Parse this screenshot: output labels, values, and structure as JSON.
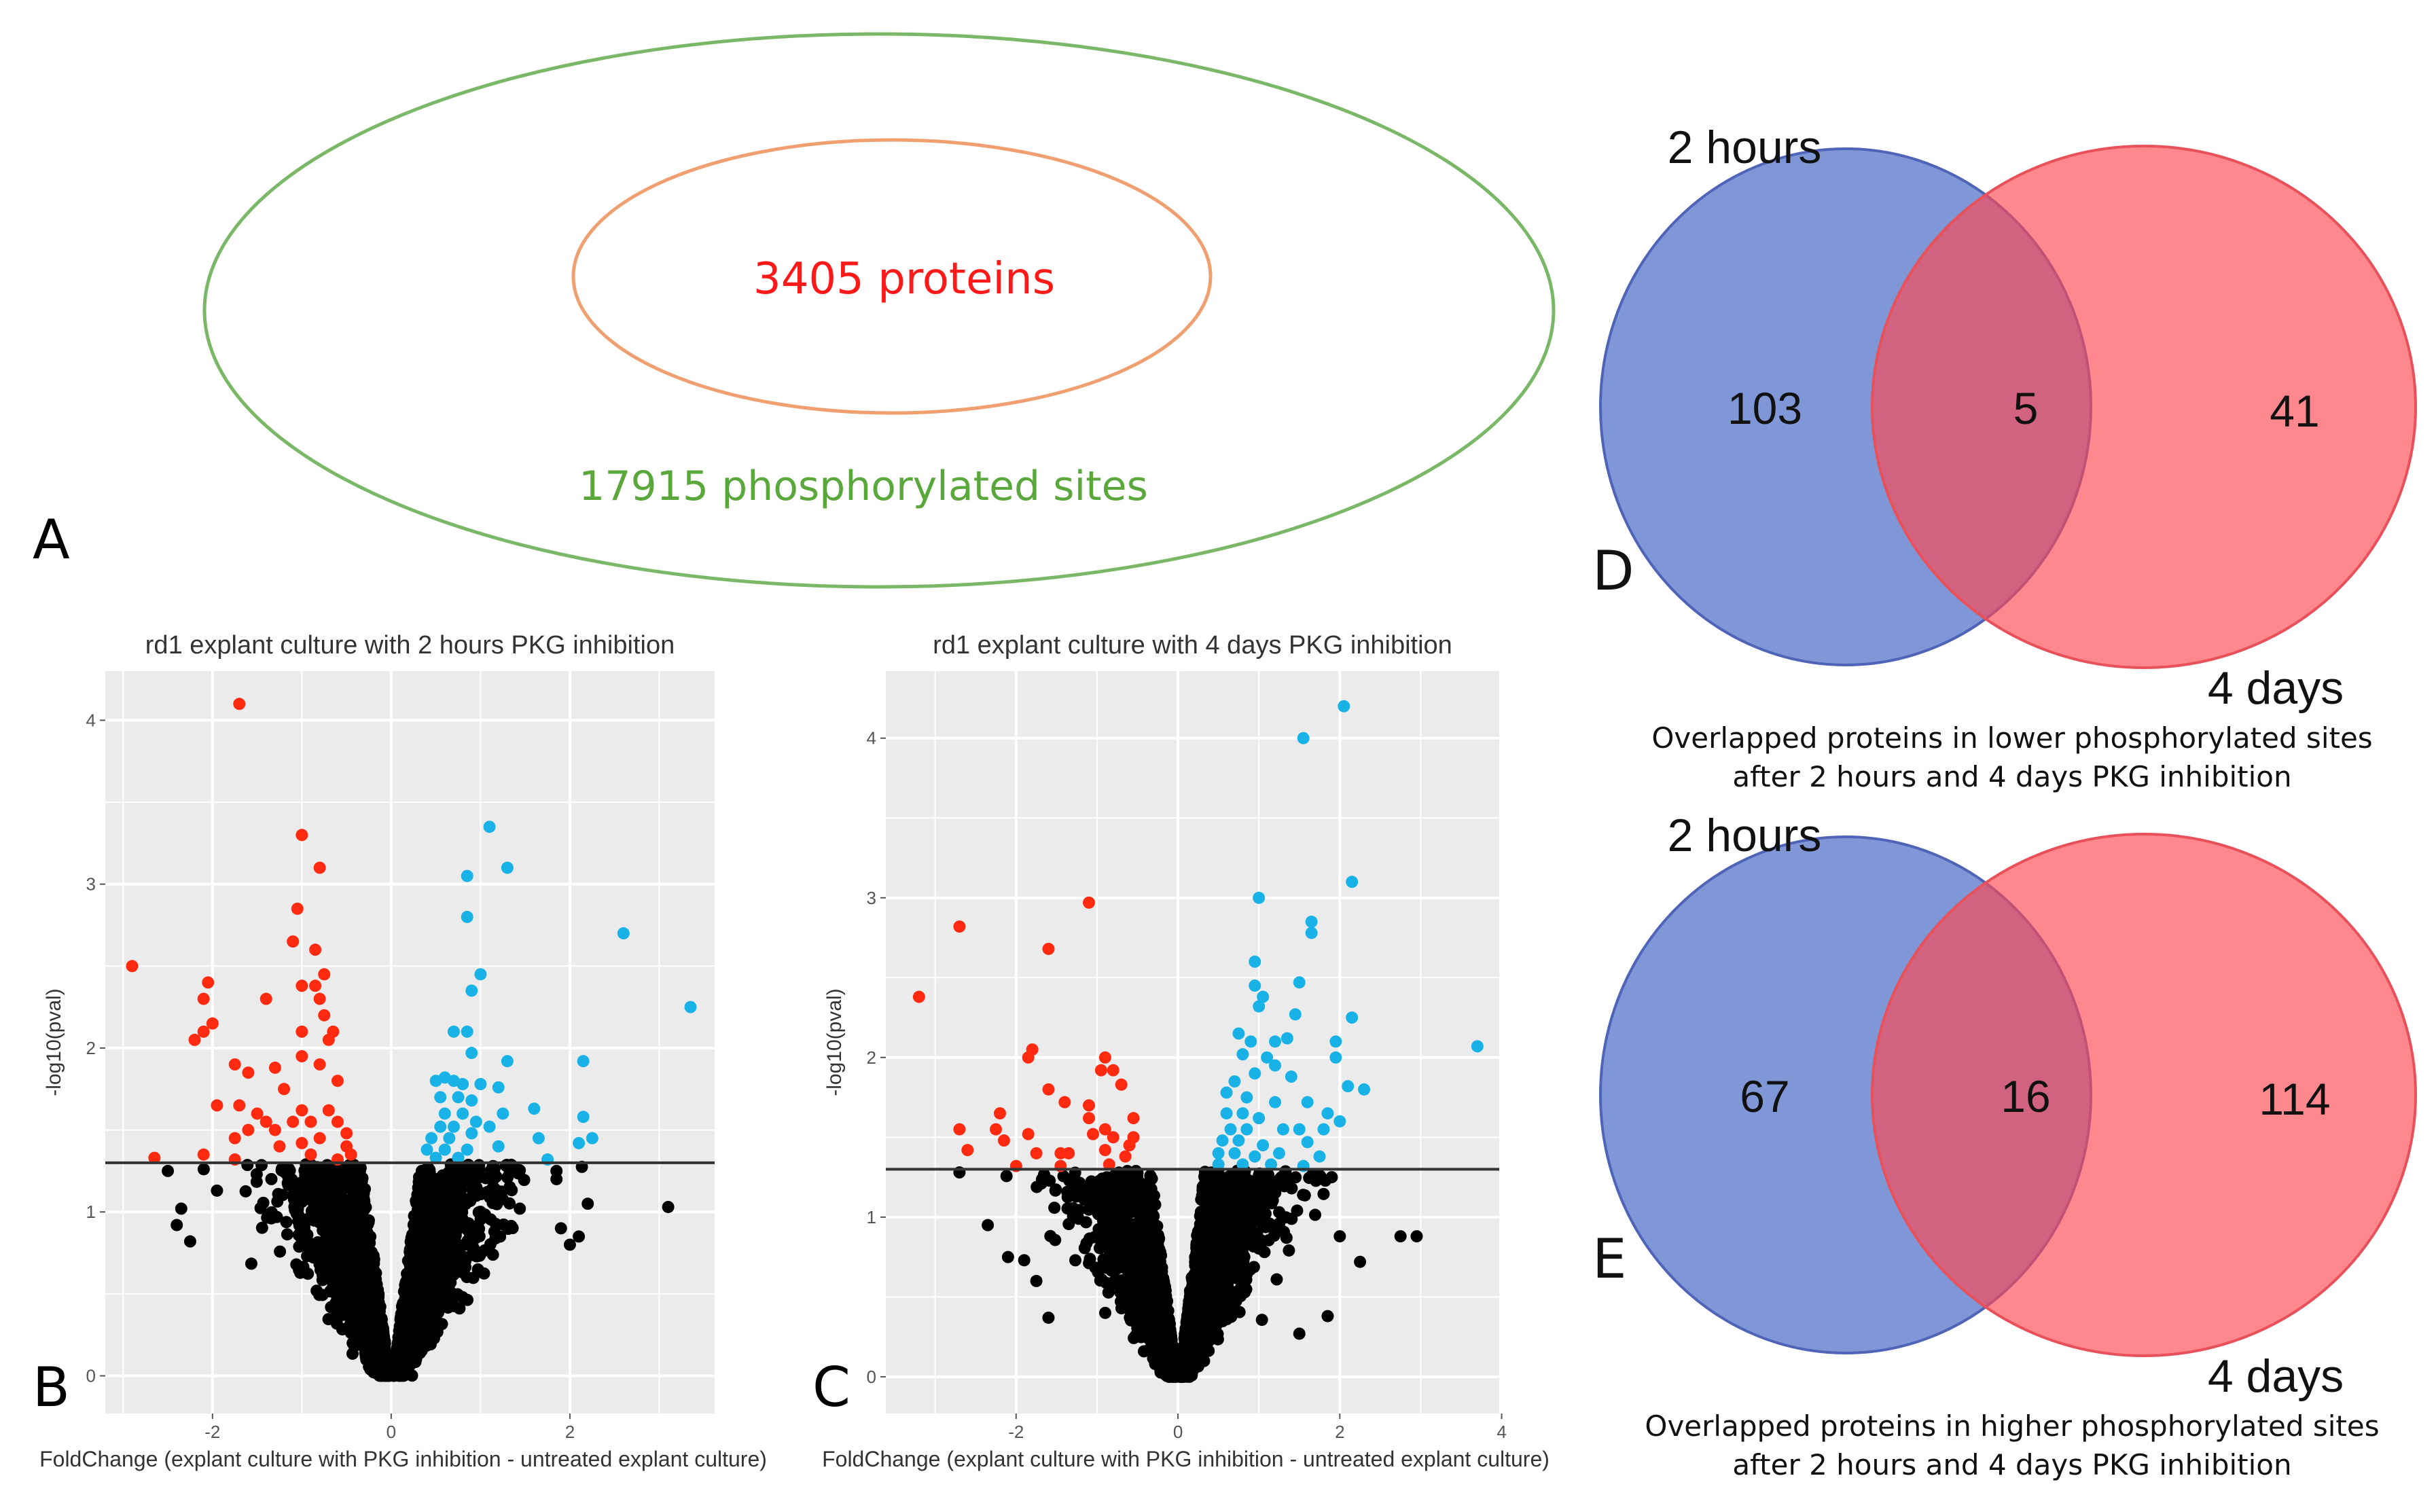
{
  "panel_a": {
    "label": "A",
    "inner_text": "3405 proteins",
    "outer_text": "17915 phosphorylated sites",
    "colors": {
      "inner": "#f0a070",
      "outer": "#7ab868",
      "inner_text": "#ff1a1a",
      "outer_text": "#5aa83c"
    }
  },
  "chart_data": [
    {
      "type": "scatter",
      "panel": "B",
      "title": "rd1 explant culture with 2 hours PKG inhibition",
      "xlabel": "FoldChange (explant culture with PKG inhibition - untreated explant culture)",
      "ylabel": "-log10(pval)",
      "xlim": [
        -3.2,
        3.62
      ],
      "ylim": [
        -0.23,
        4.3
      ],
      "xticks": [
        "-2",
        "0",
        "2"
      ],
      "xtick_values": [
        -2,
        0,
        2
      ],
      "yticks": [
        "0",
        "1",
        "2",
        "3",
        "4"
      ],
      "ytick_values": [
        0,
        1,
        2,
        3,
        4
      ],
      "threshold": 1.3,
      "grid": true,
      "colors": {
        "down": "#ff2a10",
        "up": "#19b2e6",
        "ns": "#000000"
      },
      "down": [
        [
          -1.7,
          4.1
        ],
        [
          -1.0,
          3.3
        ],
        [
          -0.8,
          3.1
        ],
        [
          -1.05,
          2.85
        ],
        [
          -1.1,
          2.65
        ],
        [
          -0.85,
          2.6
        ],
        [
          -2.9,
          2.5
        ],
        [
          -0.75,
          2.45
        ],
        [
          -2.05,
          2.4
        ],
        [
          -1.0,
          2.38
        ],
        [
          -0.85,
          2.38
        ],
        [
          -2.1,
          2.3
        ],
        [
          -1.4,
          2.3
        ],
        [
          -0.8,
          2.3
        ],
        [
          -0.75,
          2.2
        ],
        [
          -2.0,
          2.15
        ],
        [
          -2.1,
          2.1
        ],
        [
          -1.0,
          2.1
        ],
        [
          -0.65,
          2.1
        ],
        [
          -2.2,
          2.05
        ],
        [
          -0.7,
          2.05
        ],
        [
          -1.0,
          1.95
        ],
        [
          -1.75,
          1.9
        ],
        [
          -1.6,
          1.85
        ],
        [
          -1.3,
          1.88
        ],
        [
          -0.8,
          1.9
        ],
        [
          -0.6,
          1.8
        ],
        [
          -1.2,
          1.75
        ],
        [
          -1.95,
          1.65
        ],
        [
          -1.7,
          1.65
        ],
        [
          -1.5,
          1.6
        ],
        [
          -1.0,
          1.62
        ],
        [
          -0.7,
          1.62
        ],
        [
          -1.4,
          1.55
        ],
        [
          -1.1,
          1.55
        ],
        [
          -0.9,
          1.55
        ],
        [
          -0.6,
          1.55
        ],
        [
          -1.6,
          1.5
        ],
        [
          -1.3,
          1.5
        ],
        [
          -0.5,
          1.48
        ],
        [
          -1.75,
          1.45
        ],
        [
          -1.0,
          1.42
        ],
        [
          -0.8,
          1.45
        ],
        [
          -0.5,
          1.4
        ],
        [
          -2.65,
          1.33
        ],
        [
          -2.1,
          1.35
        ],
        [
          -1.25,
          1.4
        ],
        [
          -0.9,
          1.35
        ],
        [
          -0.45,
          1.35
        ],
        [
          -1.75,
          1.32
        ],
        [
          -0.6,
          1.32
        ]
      ],
      "up": [
        [
          1.1,
          3.35
        ],
        [
          1.3,
          3.1
        ],
        [
          0.85,
          3.05
        ],
        [
          0.85,
          2.8
        ],
        [
          2.6,
          2.7
        ],
        [
          1.0,
          2.45
        ],
        [
          0.9,
          2.35
        ],
        [
          3.35,
          2.25
        ],
        [
          0.7,
          2.1
        ],
        [
          0.85,
          2.1
        ],
        [
          0.9,
          1.97
        ],
        [
          1.3,
          1.92
        ],
        [
          2.15,
          1.92
        ],
        [
          0.5,
          1.8
        ],
        [
          0.6,
          1.82
        ],
        [
          0.7,
          1.8
        ],
        [
          0.8,
          1.78
        ],
        [
          1.0,
          1.78
        ],
        [
          1.2,
          1.76
        ],
        [
          0.55,
          1.7
        ],
        [
          0.75,
          1.7
        ],
        [
          0.9,
          1.68
        ],
        [
          0.6,
          1.6
        ],
        [
          0.8,
          1.6
        ],
        [
          1.25,
          1.6
        ],
        [
          1.6,
          1.63
        ],
        [
          2.15,
          1.58
        ],
        [
          0.55,
          1.52
        ],
        [
          0.7,
          1.52
        ],
        [
          0.95,
          1.55
        ],
        [
          1.1,
          1.52
        ],
        [
          0.45,
          1.45
        ],
        [
          0.65,
          1.45
        ],
        [
          0.9,
          1.48
        ],
        [
          1.65,
          1.45
        ],
        [
          2.25,
          1.45
        ],
        [
          2.1,
          1.42
        ],
        [
          0.4,
          1.38
        ],
        [
          0.6,
          1.38
        ],
        [
          0.85,
          1.38
        ],
        [
          1.2,
          1.4
        ],
        [
          0.5,
          1.33
        ],
        [
          0.75,
          1.33
        ],
        [
          1.75,
          1.32
        ]
      ],
      "ns_outliers": [
        [
          3.1,
          1.03
        ],
        [
          -2.5,
          1.25
        ],
        [
          -2.35,
          1.02
        ],
        [
          -2.4,
          0.92
        ],
        [
          -2.25,
          0.82
        ],
        [
          2.0,
          0.8
        ],
        [
          2.2,
          1.05
        ],
        [
          2.1,
          0.85
        ],
        [
          1.9,
          0.9
        ],
        [
          -1.95,
          1.13
        ],
        [
          1.85,
          1.25
        ],
        [
          1.85,
          1.2
        ]
      ],
      "ns_count": 2600
    },
    {
      "type": "scatter",
      "panel": "C",
      "title": "rd1 explant culture with 4 days PKG inhibition",
      "xlabel": "FoldChange (explant culture with PKG inhibition - untreated explant culture)",
      "ylabel": "-log10(pval)",
      "xlim": [
        -3.61,
        3.97
      ],
      "ylim": [
        -0.23,
        4.42
      ],
      "xticks": [
        "-2",
        "0",
        "2",
        "4"
      ],
      "xtick_values": [
        -2,
        0,
        2,
        4
      ],
      "yticks": [
        "0",
        "1",
        "2",
        "3",
        "4"
      ],
      "ytick_values": [
        0,
        1,
        2,
        3,
        4
      ],
      "threshold": 1.3,
      "grid": true,
      "colors": {
        "down": "#ff2a10",
        "up": "#19b2e6",
        "ns": "#000000"
      },
      "down": [
        [
          -1.1,
          2.97
        ],
        [
          -2.7,
          2.82
        ],
        [
          -1.6,
          2.68
        ],
        [
          -3.2,
          2.38
        ],
        [
          -1.8,
          2.05
        ],
        [
          -1.85,
          2.0
        ],
        [
          -0.9,
          2.0
        ],
        [
          -0.95,
          1.92
        ],
        [
          -0.8,
          1.92
        ],
        [
          -0.7,
          1.83
        ],
        [
          -1.6,
          1.8
        ],
        [
          -1.4,
          1.72
        ],
        [
          -1.1,
          1.7
        ],
        [
          -2.2,
          1.65
        ],
        [
          -1.1,
          1.62
        ],
        [
          -0.55,
          1.62
        ],
        [
          -2.7,
          1.55
        ],
        [
          -2.25,
          1.55
        ],
        [
          -1.85,
          1.52
        ],
        [
          -0.9,
          1.55
        ],
        [
          -0.8,
          1.5
        ],
        [
          -1.05,
          1.52
        ],
        [
          -0.55,
          1.5
        ],
        [
          -2.15,
          1.48
        ],
        [
          -0.6,
          1.45
        ],
        [
          -2.6,
          1.42
        ],
        [
          -1.75,
          1.4
        ],
        [
          -1.45,
          1.4
        ],
        [
          -1.35,
          1.4
        ],
        [
          -0.9,
          1.42
        ],
        [
          -0.65,
          1.38
        ],
        [
          -2.0,
          1.32
        ],
        [
          -1.45,
          1.32
        ],
        [
          -0.85,
          1.33
        ]
      ],
      "up": [
        [
          2.05,
          4.2
        ],
        [
          1.55,
          4.0
        ],
        [
          2.15,
          3.1
        ],
        [
          1.0,
          3.0
        ],
        [
          1.65,
          2.85
        ],
        [
          1.65,
          2.78
        ],
        [
          0.95,
          2.6
        ],
        [
          1.5,
          2.47
        ],
        [
          0.95,
          2.45
        ],
        [
          1.05,
          2.38
        ],
        [
          1.0,
          2.32
        ],
        [
          1.45,
          2.27
        ],
        [
          2.15,
          2.25
        ],
        [
          3.7,
          2.07
        ],
        [
          0.75,
          2.15
        ],
        [
          1.2,
          2.1
        ],
        [
          1.35,
          2.12
        ],
        [
          1.95,
          2.1
        ],
        [
          0.9,
          2.1
        ],
        [
          0.8,
          2.02
        ],
        [
          1.1,
          2.0
        ],
        [
          1.95,
          2.0
        ],
        [
          1.2,
          1.95
        ],
        [
          0.95,
          1.9
        ],
        [
          1.4,
          1.88
        ],
        [
          0.7,
          1.85
        ],
        [
          2.1,
          1.82
        ],
        [
          2.3,
          1.8
        ],
        [
          0.6,
          1.78
        ],
        [
          0.85,
          1.75
        ],
        [
          1.2,
          1.72
        ],
        [
          1.6,
          1.72
        ],
        [
          0.6,
          1.65
        ],
        [
          0.8,
          1.65
        ],
        [
          1.0,
          1.62
        ],
        [
          1.85,
          1.65
        ],
        [
          2.0,
          1.6
        ],
        [
          0.65,
          1.55
        ],
        [
          0.85,
          1.55
        ],
        [
          1.3,
          1.55
        ],
        [
          1.5,
          1.55
        ],
        [
          1.8,
          1.55
        ],
        [
          0.55,
          1.48
        ],
        [
          0.75,
          1.48
        ],
        [
          1.05,
          1.45
        ],
        [
          1.6,
          1.47
        ],
        [
          0.5,
          1.4
        ],
        [
          0.7,
          1.4
        ],
        [
          0.95,
          1.38
        ],
        [
          1.25,
          1.4
        ],
        [
          1.75,
          1.38
        ],
        [
          0.5,
          1.33
        ],
        [
          0.8,
          1.33
        ],
        [
          1.15,
          1.33
        ],
        [
          1.55,
          1.32
        ]
      ],
      "ns_outliers": [
        [
          2.75,
          0.88
        ],
        [
          2.95,
          0.88
        ],
        [
          -2.35,
          0.95
        ],
        [
          -2.1,
          0.75
        ],
        [
          -1.9,
          0.73
        ],
        [
          -1.75,
          0.6
        ],
        [
          -1.6,
          0.37
        ],
        [
          2.25,
          0.72
        ],
        [
          2.0,
          0.88
        ],
        [
          1.85,
          0.38
        ],
        [
          1.5,
          0.27
        ],
        [
          -2.7,
          1.28
        ],
        [
          1.9,
          1.25
        ]
      ],
      "ns_count": 2600
    }
  ],
  "venn_d": {
    "label": "D",
    "set_a": "2 hours",
    "set_b": "4 days",
    "only_a": "103",
    "both": "5",
    "only_b": "41",
    "caption_1": "Overlapped proteins in lower phosphorylated sites",
    "caption_2": "after 2 hours and 4 days PKG inhibition"
  },
  "venn_e": {
    "label": "E",
    "set_a": "2 hours",
    "set_b": "4 days",
    "only_a": "67",
    "both": "16",
    "only_b": "114",
    "caption_1": "Overlapped proteins in higher phosphorylated sites",
    "caption_2": "after 2 hours and 4 days PKG inhibition"
  },
  "panel_labels": {
    "b": "B",
    "c": "C"
  },
  "venn_colors": {
    "a_fill": "#7f97d6",
    "a_stroke": "#4f64b8",
    "b_fill": "#ff4652",
    "b_stroke": "#e8505a"
  }
}
